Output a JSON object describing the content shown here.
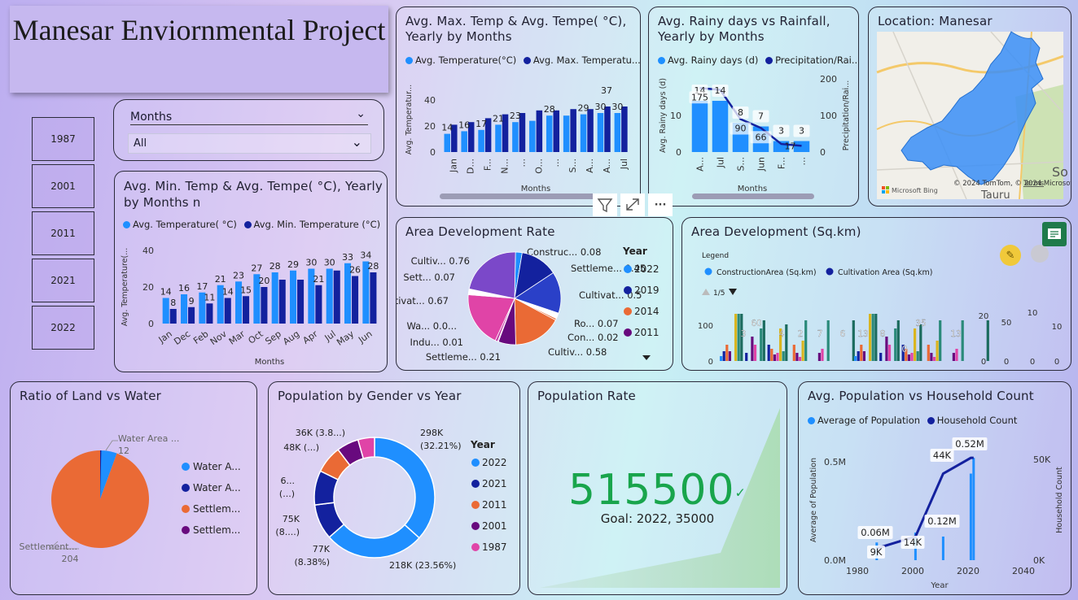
{
  "title": "Manesar Enviornmental Project",
  "year_slicer": [
    "1987",
    "2001",
    "2011",
    "2021",
    "2022"
  ],
  "months_slicer": {
    "label": "Months",
    "value": "All"
  },
  "colors": {
    "light_blue": "#1f8fff",
    "dark_blue": "#13219e",
    "orange": "#ea6a35",
    "purple": "#680a7e",
    "pink": "#e044a7"
  },
  "toolbar": {
    "filter_icon": "filter-icon",
    "focus_icon": "focus-mode-icon",
    "more": "···"
  },
  "chart_max": {
    "title": "Avg. Max. Temp & Avg. Tempe( °C), Yearly by Months",
    "legend": [
      "Avg. Temperature(°C)",
      "Avg. Max. Temperatu..."
    ],
    "chart_data": {
      "type": "bar",
      "categories": [
        "Jan",
        "D...",
        "F...",
        "N...",
        "...",
        "O...",
        "...",
        "S...",
        "A...",
        "A...",
        "Jul"
      ],
      "series": [
        {
          "name": "Avg. Temperature(°C)",
          "values": [
            14,
            16,
            17,
            21,
            23,
            24,
            28,
            28,
            29,
            30,
            30
          ]
        },
        {
          "name": "Avg. Max. Temperature",
          "values": [
            21,
            23,
            26,
            29,
            30,
            32,
            32,
            33,
            33,
            35,
            35
          ]
        }
      ],
      "labels": [
        "14",
        "16",
        "17",
        "21",
        "23",
        "",
        "28",
        "",
        "29",
        "30",
        "30"
      ],
      "extra_label": "37",
      "ylabel": "Avg. Temperatur...",
      "xlabel": "Months",
      "ticks": [
        "0",
        "20",
        "40"
      ],
      "ylim": [
        0,
        50
      ]
    }
  },
  "chart_rain": {
    "title": "Avg. Rainy days vs Rainfall, Yearly by Months",
    "legend": [
      "Avg. Rainy days (d)",
      "Precipitation/Rai..."
    ],
    "chart_data": {
      "type": "bar",
      "categories": [
        "A...",
        "Jul",
        "S...",
        "Jun",
        "F...",
        "..."
      ],
      "series": [
        {
          "name": "Avg. Rainy days (d)",
          "values": [
            14,
            14,
            8,
            7,
            3,
            3
          ]
        },
        {
          "name": "Precipitation/Rainfall",
          "values": [
            175,
            170,
            90,
            66,
            22,
            17
          ]
        }
      ],
      "bar_labels": [
        "175",
        "",
        "90",
        "66",
        "",
        ""
      ],
      "line_labels": [
        "14",
        "14",
        "8",
        "7",
        "3",
        "3"
      ],
      "last_value_label": "17",
      "ylabel": "Avg. Rainy days (d)",
      "y2label": "Precipitation/Rai...",
      "xlabel": "Months",
      "ticks": [
        "0",
        "10"
      ],
      "ticks2": [
        "0",
        "100",
        "200"
      ]
    }
  },
  "map": {
    "title": "Location: Manesar",
    "credit": "© 2024 TomTom, © 2024 Microsoft Corporation",
    "terms": "Terms",
    "brand": "Microsoft Bing",
    "town_a": "So",
    "town_b": "Tauru"
  },
  "chart_min": {
    "title": "Avg. Min. Temp & Avg. Tempe( °C), Yearly by Months n",
    "legend": [
      "Avg. Temperature( °C)",
      "Avg. Min. Temperature (°C)"
    ],
    "chart_data": {
      "type": "bar",
      "categories": [
        "Jan",
        "Dec",
        "Feb",
        "Nov",
        "Mar",
        "Oct",
        "Sep",
        "Aug",
        "Apr",
        "Jul",
        "May",
        "Jun"
      ],
      "series": [
        {
          "name": "Avg. Temperature( °C)",
          "values": [
            14,
            16,
            17,
            21,
            23,
            27,
            28,
            29,
            30,
            30,
            33,
            34
          ]
        },
        {
          "name": "Avg. Min. Temperature (°C)",
          "values": [
            8,
            9,
            11,
            14,
            15,
            20,
            24,
            24,
            21,
            29,
            26,
            28
          ]
        }
      ],
      "labels1": [
        "14",
        "16",
        "17",
        "21",
        "23",
        "27",
        "28",
        "29",
        "30",
        "30",
        "33",
        "34"
      ],
      "labels2": [
        "8",
        "9",
        "11",
        "14",
        "15",
        "20",
        "",
        "",
        "21",
        "",
        "26",
        "28"
      ],
      "ylabel": "Avg. Temperature(...",
      "xlabel": "Months",
      "ticks": [
        "0",
        "20",
        "40"
      ],
      "ylim": [
        0,
        40
      ]
    }
  },
  "chart_area_rate": {
    "title": "Area Development Rate",
    "legend_title": "Year",
    "legend": [
      "2022",
      "2019",
      "2014",
      "2011"
    ],
    "chart_data": {
      "type": "pie",
      "slices": [
        {
          "label": "Construc... 0.08",
          "value": 0.08
        },
        {
          "label": "Settleme... 0.45",
          "value": 0.45
        },
        {
          "label": "Cultivat... 0.5",
          "value": 0.5
        },
        {
          "label": "Ro... 0.07",
          "value": 0.07
        },
        {
          "label": "Con... 0.02",
          "value": 0.02
        },
        {
          "label": "Cultiv... 0.58",
          "value": 0.58
        },
        {
          "label": "Settleme... 0.21",
          "value": 0.21
        },
        {
          "label": "Indu... 0.01",
          "value": 0.01
        },
        {
          "label": "Wa... 0.0...",
          "value": 0.03
        },
        {
          "label": "Cultivat... 0.67",
          "value": 0.67
        },
        {
          "label": "Sett... 0.07",
          "value": 0.07
        },
        {
          "label": "Cultiv... 0.76",
          "value": 0.76
        }
      ]
    }
  },
  "chart_area_dev": {
    "title": "Area Development (Sq.km)",
    "legend_title": "Legend",
    "legend": [
      "ConstructionArea (Sq.km)",
      "Cultivation Area (Sq.km)"
    ],
    "pager": "1/5",
    "ticks": [
      "0",
      "100"
    ],
    "labels": [
      "3",
      "60",
      "4",
      "2",
      "7",
      "6",
      "13",
      "8",
      "0",
      "35",
      "13"
    ],
    "right_numbers": [
      "20",
      "50",
      "10",
      "10",
      "0",
      "0",
      "0",
      "0"
    ]
  },
  "chart_ratio": {
    "title": "Ratio of Land vs Water",
    "legend": [
      "Water A...",
      "Water A...",
      "Settlem...",
      "Settlem..."
    ],
    "chart_data": {
      "type": "pie",
      "slices": [
        {
          "label": "Water Area ...",
          "value": 12
        },
        {
          "label": "Settlement...",
          "value": 204
        }
      ]
    },
    "label_water": "Water Area ...",
    "value_water": "12",
    "label_settle": "Settlement...",
    "value_settle": "204"
  },
  "chart_pop_gender": {
    "title": "Population by Gender vs Year",
    "legend_title": "Year",
    "legend": [
      "2022",
      "2021",
      "2011",
      "2001",
      "1987"
    ],
    "chart_data": {
      "type": "pie",
      "donut": true,
      "slices": [
        {
          "label": "298K (32.21%)",
          "value": 298
        },
        {
          "label": "218K (23.56%)",
          "value": 218
        },
        {
          "label": "77K (8.38%)",
          "value": 77
        },
        {
          "label": "75K (8...)",
          "value": 75
        },
        {
          "label": "6... (...)",
          "value": 60
        },
        {
          "label": "48K (...)",
          "value": 48
        },
        {
          "label": "36K (3.8...)",
          "value": 36
        }
      ]
    },
    "l298": "298K",
    "p298": "(32.21%)",
    "l218": "218K (23.56%)",
    "l77": "77K",
    "p77": "(8.38%)",
    "l75": "75K",
    "p75": "(8....)",
    "l6": "6...",
    "p6": "(...)",
    "l48": "48K (...)",
    "l36": "36K (3.8...)"
  },
  "kpi": {
    "title": "Population Rate",
    "value": "515500",
    "goal": "Goal: 2022, 35000"
  },
  "chart_household": {
    "title": "Avg. Population vs Household Count",
    "legend": [
      "Average of Population",
      "Household Count"
    ],
    "chart_data": {
      "type": "line",
      "x": [
        1987,
        2001,
        2011,
        2021,
        2022
      ],
      "series": [
        {
          "name": "Average of Population",
          "values": [
            0.06,
            0.12,
            0.44,
            0.52,
            0.52
          ]
        },
        {
          "name": "Household Count",
          "values": [
            9,
            14,
            12,
            44,
            52
          ]
        }
      ]
    },
    "labels": [
      "0.06M",
      "9K",
      "14K",
      "0.12M",
      "44K",
      "0.52M"
    ],
    "yticks": [
      "0.0M",
      "0.5M"
    ],
    "y2ticks": [
      "0K",
      "50K"
    ],
    "xticks": [
      "1980",
      "2000",
      "2020",
      "2040"
    ],
    "ylabel": "Average of Population",
    "y2label": "Household Count",
    "xlabel": "Year"
  }
}
